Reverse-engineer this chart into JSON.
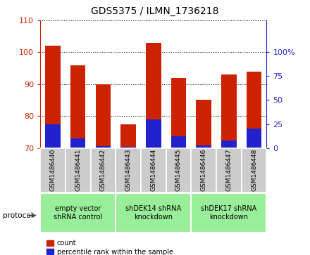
{
  "title": "GDS5375 / ILMN_1736218",
  "samples": [
    "GSM1486440",
    "GSM1486441",
    "GSM1486442",
    "GSM1486443",
    "GSM1486444",
    "GSM1486445",
    "GSM1486446",
    "GSM1486447",
    "GSM1486448"
  ],
  "count_values": [
    102.0,
    96.0,
    90.0,
    77.5,
    103.0,
    92.0,
    85.0,
    93.0,
    94.0
  ],
  "percentile_values": [
    25.0,
    10.0,
    2.0,
    1.0,
    30.0,
    12.0,
    2.5,
    8.0,
    20.0
  ],
  "ylim_left": [
    70,
    110
  ],
  "ylim_right": [
    0,
    133.33
  ],
  "yticks_left": [
    70,
    80,
    90,
    100,
    110
  ],
  "yticks_right": [
    0,
    25,
    50,
    75,
    100
  ],
  "bar_width": 0.6,
  "red_color": "#cc2200",
  "blue_color": "#2222cc",
  "groups": [
    {
      "label": "empty vector\nshRNA control",
      "start": 0,
      "end": 3
    },
    {
      "label": "shDEK14 shRNA\nknockdown",
      "start": 3,
      "end": 6
    },
    {
      "label": "shDEK17 shRNA\nknockdown",
      "start": 6,
      "end": 9
    }
  ],
  "group_color": "#99ee99",
  "legend_count_label": "count",
  "legend_pct_label": "percentile rank within the sample",
  "protocol_label": "protocol",
  "grid_color": "black",
  "grid_style": "dotted",
  "tick_label_bg": "#cccccc"
}
